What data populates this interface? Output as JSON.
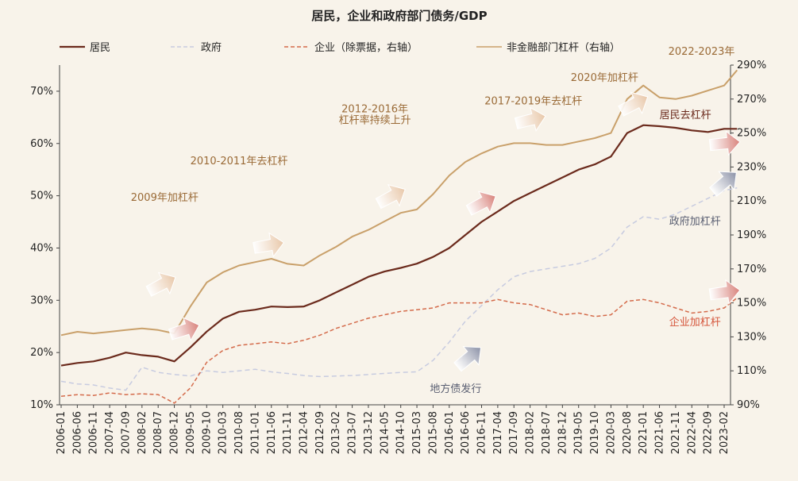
{
  "chart_data": {
    "type": "line",
    "title": "居民，企业和政府部门债务/GDP",
    "colors": {
      "household": "#6b2a1c",
      "government": "#c7cbe0",
      "corporate": "#d46b4b",
      "nonfinancial": "#c9a06a",
      "annotation_brown": "#9a6a36",
      "annotation_gray": "#5a5f72",
      "annotation_red": "#d5553b"
    },
    "legend": [
      {
        "key": "household",
        "label": "居民",
        "style": "solid"
      },
      {
        "key": "government",
        "label": "政府",
        "style": "dashed"
      },
      {
        "key": "corporate",
        "label": "企业（除票据，右轴）",
        "style": "dashed"
      },
      {
        "key": "nonfinancial",
        "label": "非金融部门杠杆（右轴）",
        "style": "solid"
      }
    ],
    "x_ticks": [
      "2006-01",
      "2006-06",
      "2006-11",
      "2007-04",
      "2007-09",
      "2008-02",
      "2008-07",
      "2008-12",
      "2009-05",
      "2009-10",
      "2010-03",
      "2010-08",
      "2011-01",
      "2011-06",
      "2011-11",
      "2012-04",
      "2012-09",
      "2013-02",
      "2013-07",
      "2013-12",
      "2014-05",
      "2014-10",
      "2015-03",
      "2015-08",
      "2016-01",
      "2016-06",
      "2016-11",
      "2017-04",
      "2017-09",
      "2018-02",
      "2018-07",
      "2018-12",
      "2019-05",
      "2019-10",
      "2020-03",
      "2020-08",
      "2021-01",
      "2021-06",
      "2021-11",
      "2022-04",
      "2022-09",
      "2023-02"
    ],
    "left_axis": {
      "min": 10,
      "max": 75,
      "ticks": [
        "10%",
        "20%",
        "30%",
        "40%",
        "50%",
        "60%",
        "70%"
      ],
      "tick_values": [
        10,
        20,
        30,
        40,
        50,
        60,
        70
      ]
    },
    "right_axis": {
      "min": 90,
      "max": 290,
      "ticks": [
        "90%",
        "110%",
        "130%",
        "150%",
        "170%",
        "190%",
        "210%",
        "230%",
        "250%",
        "270%",
        "290%"
      ],
      "tick_values": [
        90,
        110,
        130,
        150,
        170,
        190,
        210,
        230,
        250,
        270,
        290
      ]
    },
    "series": [
      {
        "key": "household",
        "axis": "left",
        "width": 2.2,
        "dash": "",
        "points": [
          [
            "2006-01",
            17.5
          ],
          [
            "2006-06",
            18
          ],
          [
            "2006-11",
            18.3
          ],
          [
            "2007-04",
            19
          ],
          [
            "2007-09",
            20
          ],
          [
            "2008-02",
            19.5
          ],
          [
            "2008-07",
            19.2
          ],
          [
            "2008-12",
            18.3
          ],
          [
            "2009-05",
            21
          ],
          [
            "2009-10",
            24
          ],
          [
            "2010-03",
            26.5
          ],
          [
            "2010-08",
            27.8
          ],
          [
            "2011-01",
            28.2
          ],
          [
            "2011-06",
            28.8
          ],
          [
            "2011-11",
            28.7
          ],
          [
            "2012-04",
            28.8
          ],
          [
            "2012-09",
            30
          ],
          [
            "2013-02",
            31.5
          ],
          [
            "2013-07",
            33
          ],
          [
            "2013-12",
            34.5
          ],
          [
            "2014-05",
            35.5
          ],
          [
            "2014-10",
            36.2
          ],
          [
            "2015-03",
            37
          ],
          [
            "2015-08",
            38.3
          ],
          [
            "2016-01",
            40
          ],
          [
            "2016-06",
            42.5
          ],
          [
            "2016-11",
            45
          ],
          [
            "2017-04",
            47
          ],
          [
            "2017-09",
            49
          ],
          [
            "2018-02",
            50.5
          ],
          [
            "2018-07",
            52
          ],
          [
            "2018-12",
            53.5
          ],
          [
            "2019-05",
            55
          ],
          [
            "2019-10",
            56
          ],
          [
            "2020-03",
            57.5
          ],
          [
            "2020-08",
            62
          ],
          [
            "2021-01",
            63.5
          ],
          [
            "2021-06",
            63.3
          ],
          [
            "2021-11",
            63
          ],
          [
            "2022-04",
            62.5
          ],
          [
            "2022-09",
            62.2
          ],
          [
            "2023-02",
            62.8
          ],
          [
            "2023-06",
            62.8
          ]
        ]
      },
      {
        "key": "government",
        "axis": "left",
        "width": 1.5,
        "dash": "6,4",
        "points": [
          [
            "2006-01",
            14.5
          ],
          [
            "2006-06",
            14
          ],
          [
            "2006-11",
            13.8
          ],
          [
            "2007-04",
            13.2
          ],
          [
            "2007-09",
            12.8
          ],
          [
            "2008-02",
            17.2
          ],
          [
            "2008-07",
            16.2
          ],
          [
            "2008-12",
            15.8
          ],
          [
            "2009-05",
            15.5
          ],
          [
            "2009-10",
            16.5
          ],
          [
            "2010-03",
            16.2
          ],
          [
            "2010-08",
            16.5
          ],
          [
            "2011-01",
            16.8
          ],
          [
            "2011-06",
            16.3
          ],
          [
            "2011-11",
            16
          ],
          [
            "2012-04",
            15.6
          ],
          [
            "2012-09",
            15.4
          ],
          [
            "2013-02",
            15.5
          ],
          [
            "2013-07",
            15.6
          ],
          [
            "2013-12",
            15.8
          ],
          [
            "2014-05",
            16
          ],
          [
            "2014-10",
            16.2
          ],
          [
            "2015-03",
            16.3
          ],
          [
            "2015-08",
            18.5
          ],
          [
            "2016-01",
            22
          ],
          [
            "2016-06",
            26
          ],
          [
            "2016-11",
            29
          ],
          [
            "2017-04",
            32
          ],
          [
            "2017-09",
            34.5
          ],
          [
            "2018-02",
            35.5
          ],
          [
            "2018-07",
            36
          ],
          [
            "2018-12",
            36.5
          ],
          [
            "2019-05",
            37
          ],
          [
            "2019-10",
            38
          ],
          [
            "2020-03",
            40
          ],
          [
            "2020-08",
            44
          ],
          [
            "2021-01",
            46
          ],
          [
            "2021-06",
            45.5
          ],
          [
            "2021-11",
            46.5
          ],
          [
            "2022-04",
            48
          ],
          [
            "2022-09",
            49.5
          ],
          [
            "2023-02",
            51
          ],
          [
            "2023-06",
            51.5
          ]
        ]
      },
      {
        "key": "corporate",
        "axis": "right",
        "width": 1.5,
        "dash": "5,3",
        "points": [
          [
            "2006-01",
            95
          ],
          [
            "2006-06",
            96
          ],
          [
            "2006-11",
            95.5
          ],
          [
            "2007-04",
            97
          ],
          [
            "2007-09",
            96
          ],
          [
            "2008-02",
            96.5
          ],
          [
            "2008-07",
            96
          ],
          [
            "2008-12",
            91
          ],
          [
            "2009-05",
            100
          ],
          [
            "2009-10",
            115
          ],
          [
            "2010-03",
            122
          ],
          [
            "2010-08",
            125
          ],
          [
            "2011-01",
            126
          ],
          [
            "2011-06",
            127
          ],
          [
            "2011-11",
            126
          ],
          [
            "2012-04",
            128
          ],
          [
            "2012-09",
            131
          ],
          [
            "2013-02",
            135
          ],
          [
            "2013-07",
            138
          ],
          [
            "2013-12",
            141
          ],
          [
            "2014-05",
            143
          ],
          [
            "2014-10",
            145
          ],
          [
            "2015-03",
            146
          ],
          [
            "2015-08",
            147
          ],
          [
            "2016-01",
            150
          ],
          [
            "2016-06",
            150
          ],
          [
            "2016-11",
            150
          ],
          [
            "2017-04",
            152
          ],
          [
            "2017-09",
            150
          ],
          [
            "2018-02",
            149
          ],
          [
            "2018-07",
            146
          ],
          [
            "2018-12",
            143
          ],
          [
            "2019-05",
            144
          ],
          [
            "2019-10",
            142
          ],
          [
            "2020-03",
            143
          ],
          [
            "2020-08",
            151
          ],
          [
            "2021-01",
            152
          ],
          [
            "2021-06",
            150
          ],
          [
            "2021-11",
            147
          ],
          [
            "2022-04",
            144
          ],
          [
            "2022-09",
            145
          ],
          [
            "2023-02",
            147
          ],
          [
            "2023-06",
            153
          ]
        ]
      },
      {
        "key": "nonfinancial",
        "axis": "right",
        "width": 2,
        "dash": "",
        "points": [
          [
            "2006-01",
            131
          ],
          [
            "2006-06",
            133
          ],
          [
            "2006-11",
            132
          ],
          [
            "2007-04",
            133
          ],
          [
            "2007-09",
            134
          ],
          [
            "2008-02",
            135
          ],
          [
            "2008-07",
            134
          ],
          [
            "2008-12",
            132
          ],
          [
            "2009-05",
            148
          ],
          [
            "2009-10",
            162
          ],
          [
            "2010-03",
            168
          ],
          [
            "2010-08",
            172
          ],
          [
            "2011-01",
            174
          ],
          [
            "2011-06",
            176
          ],
          [
            "2011-11",
            173
          ],
          [
            "2012-04",
            172
          ],
          [
            "2012-09",
            178
          ],
          [
            "2013-02",
            183
          ],
          [
            "2013-07",
            189
          ],
          [
            "2013-12",
            193
          ],
          [
            "2014-05",
            198
          ],
          [
            "2014-10",
            203
          ],
          [
            "2015-03",
            205
          ],
          [
            "2015-08",
            214
          ],
          [
            "2016-01",
            225
          ],
          [
            "2016-06",
            233
          ],
          [
            "2016-11",
            238
          ],
          [
            "2017-04",
            242
          ],
          [
            "2017-09",
            244
          ],
          [
            "2018-02",
            244
          ],
          [
            "2018-07",
            243
          ],
          [
            "2018-12",
            243
          ],
          [
            "2019-05",
            245
          ],
          [
            "2019-10",
            247
          ],
          [
            "2020-03",
            250
          ],
          [
            "2020-08",
            270
          ],
          [
            "2021-01",
            278
          ],
          [
            "2021-06",
            271
          ],
          [
            "2021-11",
            270
          ],
          [
            "2022-04",
            272
          ],
          [
            "2022-09",
            275
          ],
          [
            "2023-02",
            278
          ],
          [
            "2023-06",
            287
          ]
        ]
      }
    ],
    "annotations": [
      {
        "text": "2009年加杠杆",
        "at": [
          "2008-09",
          49
        ],
        "color_key": "annotation_brown"
      },
      {
        "text": "2010-2011年去杠杆",
        "at": [
          "2010-08",
          56
        ],
        "color_key": "annotation_brown"
      },
      {
        "text": "2012-2016年",
        "at": [
          "2014-02",
          66
        ],
        "color_key": "annotation_brown"
      },
      {
        "text": "杠杆率持续上升",
        "at": [
          "2014-02",
          63.8
        ],
        "color_key": "annotation_brown"
      },
      {
        "text": "2017-2019年去杠杆",
        "at": [
          "2018-03",
          67.5
        ],
        "color_key": "annotation_brown"
      },
      {
        "text": "2020年加杠杆",
        "at": [
          "2020-01",
          72
        ],
        "color_key": "annotation_brown"
      },
      {
        "text": "2022-2023年",
        "at": [
          "2022-07",
          77
        ],
        "color_key": "annotation_brown"
      },
      {
        "text": "居民去杠杆",
        "at": [
          "2022-02",
          64.8
        ],
        "color_key": "household"
      },
      {
        "text": "政府加杠杆",
        "at": [
          "2022-05",
          44.5
        ],
        "color_key": "annotation_gray"
      },
      {
        "text": "企业加杠杆",
        "at": [
          "2022-05",
          25.2
        ],
        "color_key": "annotation_red"
      },
      {
        "text": "地方债发行",
        "at": [
          "2016-03",
          12.4
        ],
        "color_key": "annotation_gray"
      }
    ],
    "arrows": [
      {
        "at": [
          "2008-08",
          33
        ],
        "fill": "#e8c7a8",
        "angle": -28
      },
      {
        "at": [
          "2009-03",
          24.3
        ],
        "fill": "#d8817a",
        "angle": -18
      },
      {
        "at": [
          "2011-05",
          40.5
        ],
        "fill": "#e8c7a8",
        "angle": -10
      },
      {
        "at": [
          "2014-07",
          49.8
        ],
        "fill": "#e8c7a8",
        "angle": -28
      },
      {
        "at": [
          "2016-11",
          48.5
        ],
        "fill": "#d8817a",
        "angle": -28
      },
      {
        "at": [
          "2018-02",
          64.5
        ],
        "fill": "#e8c7a8",
        "angle": -14
      },
      {
        "at": [
          "2020-10",
          67.5
        ],
        "fill": "#e8c7a8",
        "angle": -28
      },
      {
        "at": [
          "2023-02",
          60
        ],
        "fill": "#d8817a",
        "angle": -6
      },
      {
        "at": [
          "2023-02",
          52.5
        ],
        "fill": "#8a90a6",
        "angle": -40
      },
      {
        "at": [
          "2016-07",
          19
        ],
        "fill": "#8a90a6",
        "angle": -40
      },
      {
        "at": [
          "2023-02",
          31.5
        ],
        "fill": "#d8817a",
        "angle": -8
      }
    ],
    "grid": false,
    "legend_position": "top"
  }
}
